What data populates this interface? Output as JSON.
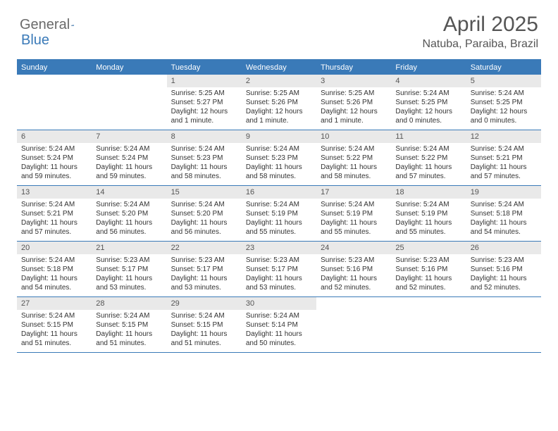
{
  "logo": {
    "word1": "General",
    "word2": "Blue"
  },
  "title": "April 2025",
  "location": "Natuba, Paraiba, Brazil",
  "colors": {
    "header_bg": "#3a7ab8",
    "header_text": "#ffffff",
    "num_bg": "#e9e9e9",
    "text": "#333333",
    "title_text": "#555555",
    "border": "#3a7ab8"
  },
  "days_of_week": [
    "Sunday",
    "Monday",
    "Tuesday",
    "Wednesday",
    "Thursday",
    "Friday",
    "Saturday"
  ],
  "weeks": [
    [
      null,
      null,
      {
        "n": "1",
        "sunrise": "Sunrise: 5:25 AM",
        "sunset": "Sunset: 5:27 PM",
        "daylight": "Daylight: 12 hours and 1 minute."
      },
      {
        "n": "2",
        "sunrise": "Sunrise: 5:25 AM",
        "sunset": "Sunset: 5:26 PM",
        "daylight": "Daylight: 12 hours and 1 minute."
      },
      {
        "n": "3",
        "sunrise": "Sunrise: 5:25 AM",
        "sunset": "Sunset: 5:26 PM",
        "daylight": "Daylight: 12 hours and 1 minute."
      },
      {
        "n": "4",
        "sunrise": "Sunrise: 5:24 AM",
        "sunset": "Sunset: 5:25 PM",
        "daylight": "Daylight: 12 hours and 0 minutes."
      },
      {
        "n": "5",
        "sunrise": "Sunrise: 5:24 AM",
        "sunset": "Sunset: 5:25 PM",
        "daylight": "Daylight: 12 hours and 0 minutes."
      }
    ],
    [
      {
        "n": "6",
        "sunrise": "Sunrise: 5:24 AM",
        "sunset": "Sunset: 5:24 PM",
        "daylight": "Daylight: 11 hours and 59 minutes."
      },
      {
        "n": "7",
        "sunrise": "Sunrise: 5:24 AM",
        "sunset": "Sunset: 5:24 PM",
        "daylight": "Daylight: 11 hours and 59 minutes."
      },
      {
        "n": "8",
        "sunrise": "Sunrise: 5:24 AM",
        "sunset": "Sunset: 5:23 PM",
        "daylight": "Daylight: 11 hours and 58 minutes."
      },
      {
        "n": "9",
        "sunrise": "Sunrise: 5:24 AM",
        "sunset": "Sunset: 5:23 PM",
        "daylight": "Daylight: 11 hours and 58 minutes."
      },
      {
        "n": "10",
        "sunrise": "Sunrise: 5:24 AM",
        "sunset": "Sunset: 5:22 PM",
        "daylight": "Daylight: 11 hours and 58 minutes."
      },
      {
        "n": "11",
        "sunrise": "Sunrise: 5:24 AM",
        "sunset": "Sunset: 5:22 PM",
        "daylight": "Daylight: 11 hours and 57 minutes."
      },
      {
        "n": "12",
        "sunrise": "Sunrise: 5:24 AM",
        "sunset": "Sunset: 5:21 PM",
        "daylight": "Daylight: 11 hours and 57 minutes."
      }
    ],
    [
      {
        "n": "13",
        "sunrise": "Sunrise: 5:24 AM",
        "sunset": "Sunset: 5:21 PM",
        "daylight": "Daylight: 11 hours and 57 minutes."
      },
      {
        "n": "14",
        "sunrise": "Sunrise: 5:24 AM",
        "sunset": "Sunset: 5:20 PM",
        "daylight": "Daylight: 11 hours and 56 minutes."
      },
      {
        "n": "15",
        "sunrise": "Sunrise: 5:24 AM",
        "sunset": "Sunset: 5:20 PM",
        "daylight": "Daylight: 11 hours and 56 minutes."
      },
      {
        "n": "16",
        "sunrise": "Sunrise: 5:24 AM",
        "sunset": "Sunset: 5:19 PM",
        "daylight": "Daylight: 11 hours and 55 minutes."
      },
      {
        "n": "17",
        "sunrise": "Sunrise: 5:24 AM",
        "sunset": "Sunset: 5:19 PM",
        "daylight": "Daylight: 11 hours and 55 minutes."
      },
      {
        "n": "18",
        "sunrise": "Sunrise: 5:24 AM",
        "sunset": "Sunset: 5:19 PM",
        "daylight": "Daylight: 11 hours and 55 minutes."
      },
      {
        "n": "19",
        "sunrise": "Sunrise: 5:24 AM",
        "sunset": "Sunset: 5:18 PM",
        "daylight": "Daylight: 11 hours and 54 minutes."
      }
    ],
    [
      {
        "n": "20",
        "sunrise": "Sunrise: 5:24 AM",
        "sunset": "Sunset: 5:18 PM",
        "daylight": "Daylight: 11 hours and 54 minutes."
      },
      {
        "n": "21",
        "sunrise": "Sunrise: 5:23 AM",
        "sunset": "Sunset: 5:17 PM",
        "daylight": "Daylight: 11 hours and 53 minutes."
      },
      {
        "n": "22",
        "sunrise": "Sunrise: 5:23 AM",
        "sunset": "Sunset: 5:17 PM",
        "daylight": "Daylight: 11 hours and 53 minutes."
      },
      {
        "n": "23",
        "sunrise": "Sunrise: 5:23 AM",
        "sunset": "Sunset: 5:17 PM",
        "daylight": "Daylight: 11 hours and 53 minutes."
      },
      {
        "n": "24",
        "sunrise": "Sunrise: 5:23 AM",
        "sunset": "Sunset: 5:16 PM",
        "daylight": "Daylight: 11 hours and 52 minutes."
      },
      {
        "n": "25",
        "sunrise": "Sunrise: 5:23 AM",
        "sunset": "Sunset: 5:16 PM",
        "daylight": "Daylight: 11 hours and 52 minutes."
      },
      {
        "n": "26",
        "sunrise": "Sunrise: 5:23 AM",
        "sunset": "Sunset: 5:16 PM",
        "daylight": "Daylight: 11 hours and 52 minutes."
      }
    ],
    [
      {
        "n": "27",
        "sunrise": "Sunrise: 5:24 AM",
        "sunset": "Sunset: 5:15 PM",
        "daylight": "Daylight: 11 hours and 51 minutes."
      },
      {
        "n": "28",
        "sunrise": "Sunrise: 5:24 AM",
        "sunset": "Sunset: 5:15 PM",
        "daylight": "Daylight: 11 hours and 51 minutes."
      },
      {
        "n": "29",
        "sunrise": "Sunrise: 5:24 AM",
        "sunset": "Sunset: 5:15 PM",
        "daylight": "Daylight: 11 hours and 51 minutes."
      },
      {
        "n": "30",
        "sunrise": "Sunrise: 5:24 AM",
        "sunset": "Sunset: 5:14 PM",
        "daylight": "Daylight: 11 hours and 50 minutes."
      },
      null,
      null,
      null
    ]
  ]
}
